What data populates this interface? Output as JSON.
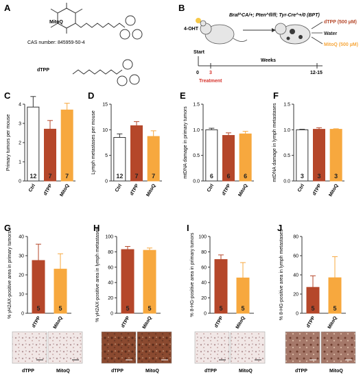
{
  "colors": {
    "ctrl_fill": "#ffffff",
    "dtpp": "#b5472a",
    "mitoq": "#f7a83e",
    "treatment_red": "#d6332c",
    "axis": "#333333"
  },
  "panels": {
    "A": {
      "letter": "A",
      "compound1_name": "MitoQ",
      "cas_label": "CAS number: 845959-50-4",
      "compound2_name": "dTPP"
    },
    "B": {
      "letter": "B",
      "model_label": "Braf^CA/+; Pten^fl/fl; Tyr-Cre^+/0 (BPT)",
      "inducer": "4-OHT",
      "legend_dtpp": "dTPP (500 µM)",
      "legend_water": "Water",
      "legend_mitoq": "MitoQ (500 µM)",
      "start_label": "Start",
      "tick_0": "0",
      "tick_3": "3",
      "tick_end": "12-15",
      "treatment_label": "Treatment",
      "weeks_label": "Weeks"
    },
    "G_images": {
      "dtpp_label": "dTPP",
      "mitoq_label": "MitoQ"
    },
    "H_images": {
      "dtpp_label": "dTPP",
      "mitoq_label": "MitoQ"
    },
    "I_images": {
      "dtpp_label": "dTPP",
      "mitoq_label": "MitoQ"
    },
    "J_images": {
      "dtpp_label": "dTPP",
      "mitoq_label": "MitoQ"
    }
  },
  "chart_data": [
    {
      "id": "C",
      "letter": "C",
      "type": "bar",
      "ylabel": "Primary tumors per mouse",
      "ylim": [
        0,
        4
      ],
      "yticks": [
        "0",
        "1",
        "2",
        "3",
        "4"
      ],
      "categories": [
        "Ctrl",
        "dTPP",
        "MitoQ"
      ],
      "values": [
        3.85,
        2.7,
        3.7
      ],
      "errors": [
        0.55,
        0.45,
        0.35
      ],
      "n_labels": [
        "12",
        "7",
        "7"
      ],
      "colors": [
        "#ffffff",
        "#b5472a",
        "#f7a83e"
      ]
    },
    {
      "id": "D",
      "letter": "D",
      "type": "bar",
      "ylabel": "Lymph metastases per mouse",
      "ylim": [
        0,
        15
      ],
      "yticks": [
        "0",
        "5",
        "10",
        "15"
      ],
      "categories": [
        "Ctrl",
        "dTPP",
        "MitoQ"
      ],
      "values": [
        8.5,
        10.8,
        8.7
      ],
      "errors": [
        0.7,
        0.8,
        1.1
      ],
      "n_labels": [
        "12",
        "7",
        "7"
      ],
      "colors": [
        "#ffffff",
        "#b5472a",
        "#f7a83e"
      ]
    },
    {
      "id": "E",
      "letter": "E",
      "type": "bar",
      "ylabel": "mtDNA damage in primary tumors",
      "ylim": [
        0,
        1.5
      ],
      "yticks": [
        "0.0",
        "0.5",
        "1.0",
        "1.5"
      ],
      "categories": [
        "Ctrl",
        "dTPP",
        "MitoQ"
      ],
      "values": [
        1.0,
        0.89,
        0.92
      ],
      "errors": [
        0.03,
        0.05,
        0.05
      ],
      "n_labels": [
        "6",
        "6",
        "6"
      ],
      "colors": [
        "#ffffff",
        "#b5472a",
        "#f7a83e"
      ]
    },
    {
      "id": "F",
      "letter": "F",
      "type": "bar",
      "ylabel": "mtDNA damage in lymph metastases",
      "ylim": [
        0,
        1.5
      ],
      "yticks": [
        "0.0",
        "0.5",
        "1.0",
        "1.5"
      ],
      "categories": [
        "Ctrl",
        "dTPP",
        "MitoQ"
      ],
      "values": [
        1.0,
        1.01,
        1.01
      ],
      "errors": [
        0.01,
        0.03,
        0.01
      ],
      "n_labels": [
        "3",
        "3",
        "3"
      ],
      "colors": [
        "#ffffff",
        "#b5472a",
        "#f7a83e"
      ]
    },
    {
      "id": "G",
      "letter": "G",
      "type": "bar",
      "ylabel": "% γH2AX-positive area in primary tumors",
      "ylim": [
        0,
        40
      ],
      "yticks": [
        "0",
        "10",
        "20",
        "30",
        "40"
      ],
      "categories": [
        "dTPP",
        "MitoQ"
      ],
      "values": [
        27.5,
        23.0
      ],
      "errors": [
        8.5,
        8.0
      ],
      "n_labels": [
        "5",
        "5"
      ],
      "colors": [
        "#b5472a",
        "#f7a83e"
      ]
    },
    {
      "id": "H",
      "letter": "H",
      "type": "bar",
      "ylabel": "% γH2AX-positive area in lymph metastases",
      "ylim": [
        0,
        100
      ],
      "yticks": [
        "0",
        "20",
        "40",
        "60",
        "80",
        "100"
      ],
      "categories": [
        "dTPP",
        "MitoQ"
      ],
      "values": [
        83,
        82
      ],
      "errors": [
        4,
        3
      ],
      "n_labels": [
        "5",
        "5"
      ],
      "colors": [
        "#b5472a",
        "#f7a83e"
      ]
    },
    {
      "id": "I",
      "letter": "I",
      "type": "bar",
      "ylabel": "% 8-HG-positive area in primary tumors",
      "ylim": [
        0,
        100
      ],
      "yticks": [
        "0",
        "20",
        "40",
        "60",
        "80",
        "100"
      ],
      "categories": [
        "dTPP",
        "MitoQ"
      ],
      "values": [
        70,
        46
      ],
      "errors": [
        6,
        20
      ],
      "n_labels": [
        "5",
        "5"
      ],
      "colors": [
        "#b5472a",
        "#f7a83e"
      ]
    },
    {
      "id": "J",
      "letter": "J",
      "type": "bar",
      "ylabel": "% 8-HG-positive area in lymph metastases",
      "ylim": [
        0,
        80
      ],
      "yticks": [
        "0",
        "20",
        "40",
        "60",
        "80"
      ],
      "categories": [
        "dTPP",
        "MitoQ"
      ],
      "values": [
        27,
        37
      ],
      "errors": [
        12,
        22
      ],
      "n_labels": [
        "5",
        "5"
      ],
      "colors": [
        "#b5472a",
        "#f7a83e"
      ]
    }
  ]
}
